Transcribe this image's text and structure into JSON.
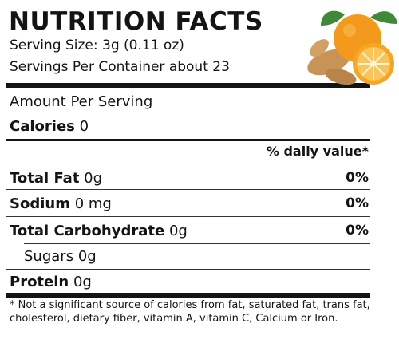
{
  "header": {
    "title": "NUTRITION FACTS",
    "serving_size": "Serving Size: 3g (0.11 oz)",
    "servings_per_container": "Servings Per Container about 23"
  },
  "amount_per_serving": "Amount Per Serving",
  "calories": {
    "label": "Calories",
    "value": "0"
  },
  "daily_value_header": "% daily value*",
  "nutrients": [
    {
      "label": "Total Fat",
      "amount": "0g",
      "dv": "0%"
    },
    {
      "label": "Sodium",
      "amount": "0 mg",
      "dv": "0%"
    },
    {
      "label": "Total Carbohydrate",
      "amount": "0g",
      "dv": "0%"
    },
    {
      "label": "Sugars",
      "amount": "0g"
    },
    {
      "label": "Protein",
      "amount": "0g"
    }
  ],
  "footnote": "* Not a significant source of calories from fat, saturated fat, trans fat, cholesterol, dietary fiber, vitamin A, vitamin C, Calcium or Iron.",
  "illustration": {
    "name": "orange-ginger-image",
    "colors": {
      "orange": "#f39a1c",
      "ginger": "#c89456",
      "leaf": "#3f8a3a"
    }
  }
}
